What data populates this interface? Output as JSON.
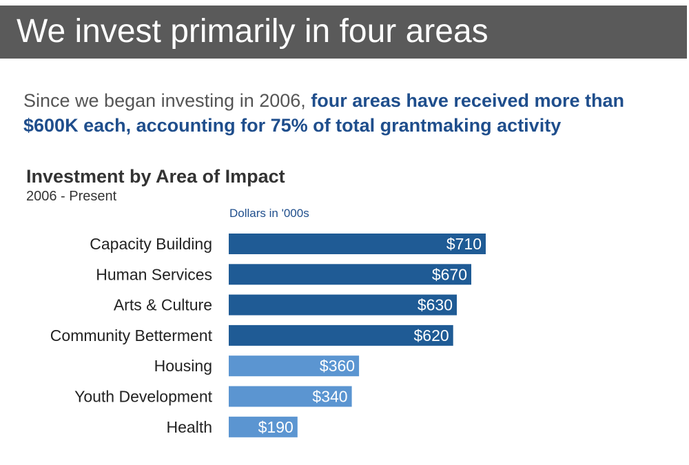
{
  "header": {
    "title": "We invest primarily in four areas"
  },
  "summary": {
    "lead": "Since we began investing in 2006, ",
    "emphasis": "four areas have received more than $600K each, accounting for 75% of total grantmaking activity"
  },
  "colors": {
    "title_bar": "#5a5a5a",
    "emphasis_text": "#1f4e8c",
    "bar_top_four": "#1f5b95",
    "bar_other": "#5b95d1"
  },
  "chart_data": {
    "type": "bar",
    "orientation": "horizontal",
    "title": "Investment by Area of Impact",
    "subtitle": "2006 - Present",
    "units_label": "Dollars in '000s",
    "categories": [
      "Capacity Building",
      "Human Services",
      "Arts & Culture",
      "Community Betterment",
      "Housing",
      "Youth Development",
      "Health"
    ],
    "values": [
      710,
      670,
      630,
      620,
      360,
      340,
      190
    ],
    "value_labels": [
      "$710",
      "$670",
      "$630",
      "$620",
      "$360",
      "$340",
      "$190"
    ],
    "highlighted": [
      true,
      true,
      true,
      true,
      false,
      false,
      false
    ],
    "xlim": [
      0,
      710
    ],
    "grid": false,
    "legend": "none"
  }
}
